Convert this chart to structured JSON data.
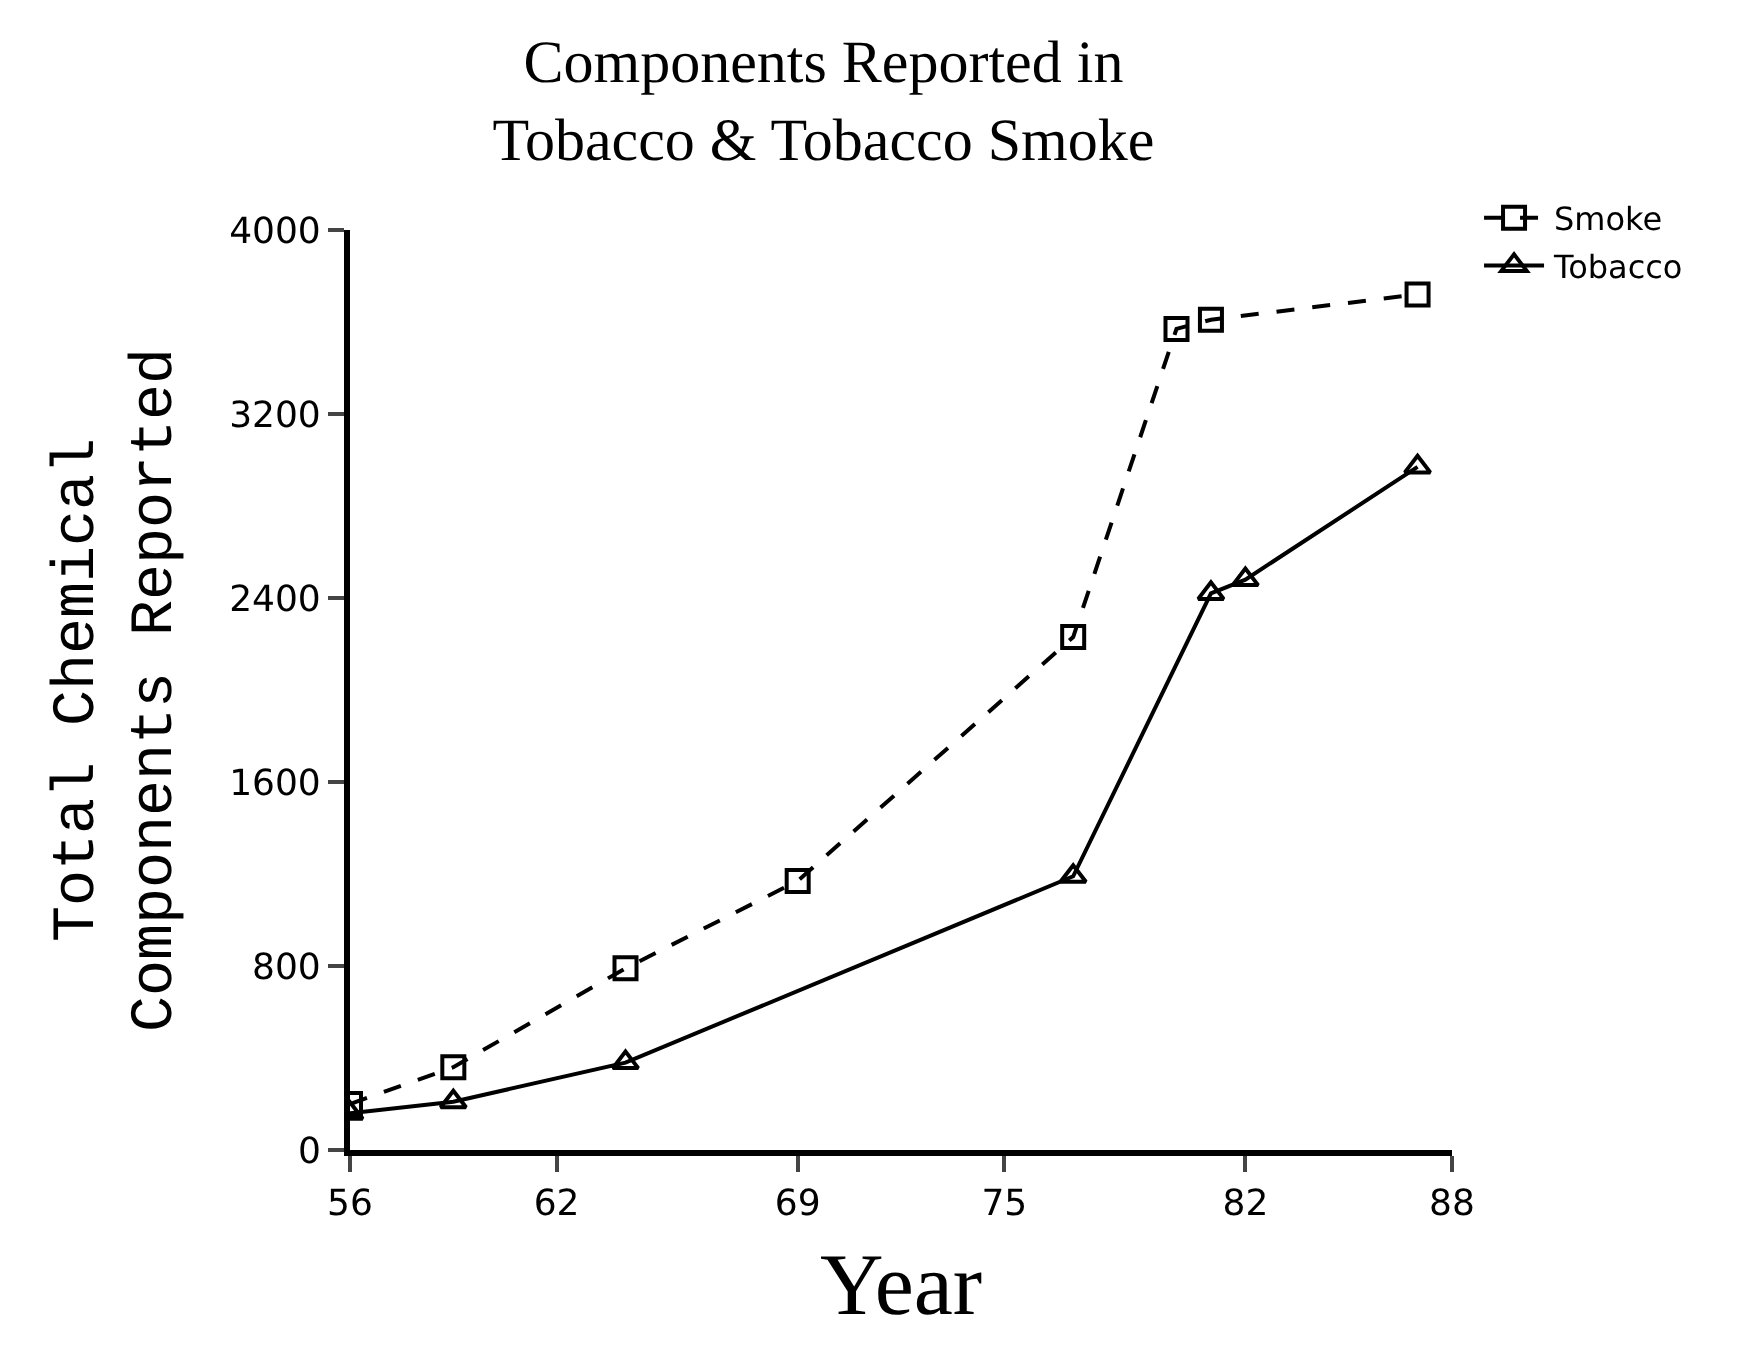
{
  "chart_data": {
    "type": "line",
    "title": "Components Reported in",
    "subtitle": "Tobacco & Tobacco Smoke",
    "xlabel": "Year",
    "ylabel": "Total Chemical\nComponents Reported",
    "xlim": [
      56,
      88
    ],
    "xticks": [
      56,
      62,
      69,
      75,
      82,
      88
    ],
    "ylim": [
      0,
      4000
    ],
    "yticks": [
      0,
      800,
      1600,
      2400,
      3200,
      4000
    ],
    "legend": "top right",
    "series": [
      {
        "name": "Smoke",
        "color": "#000000",
        "marker": "square",
        "line_style": "dashed",
        "x": [
          56,
          59,
          64,
          69,
          77,
          80,
          81,
          87
        ],
        "values": [
          200,
          360,
          790,
          1170,
          2230,
          3570,
          3610,
          3720
        ]
      },
      {
        "name": "Tobacco",
        "color": "#000000",
        "marker": "triangle",
        "line_style": "solid",
        "x": [
          56,
          59,
          64,
          77,
          81,
          82,
          87
        ],
        "values": [
          160,
          210,
          380,
          1190,
          2420,
          2480,
          2970
        ]
      }
    ]
  }
}
